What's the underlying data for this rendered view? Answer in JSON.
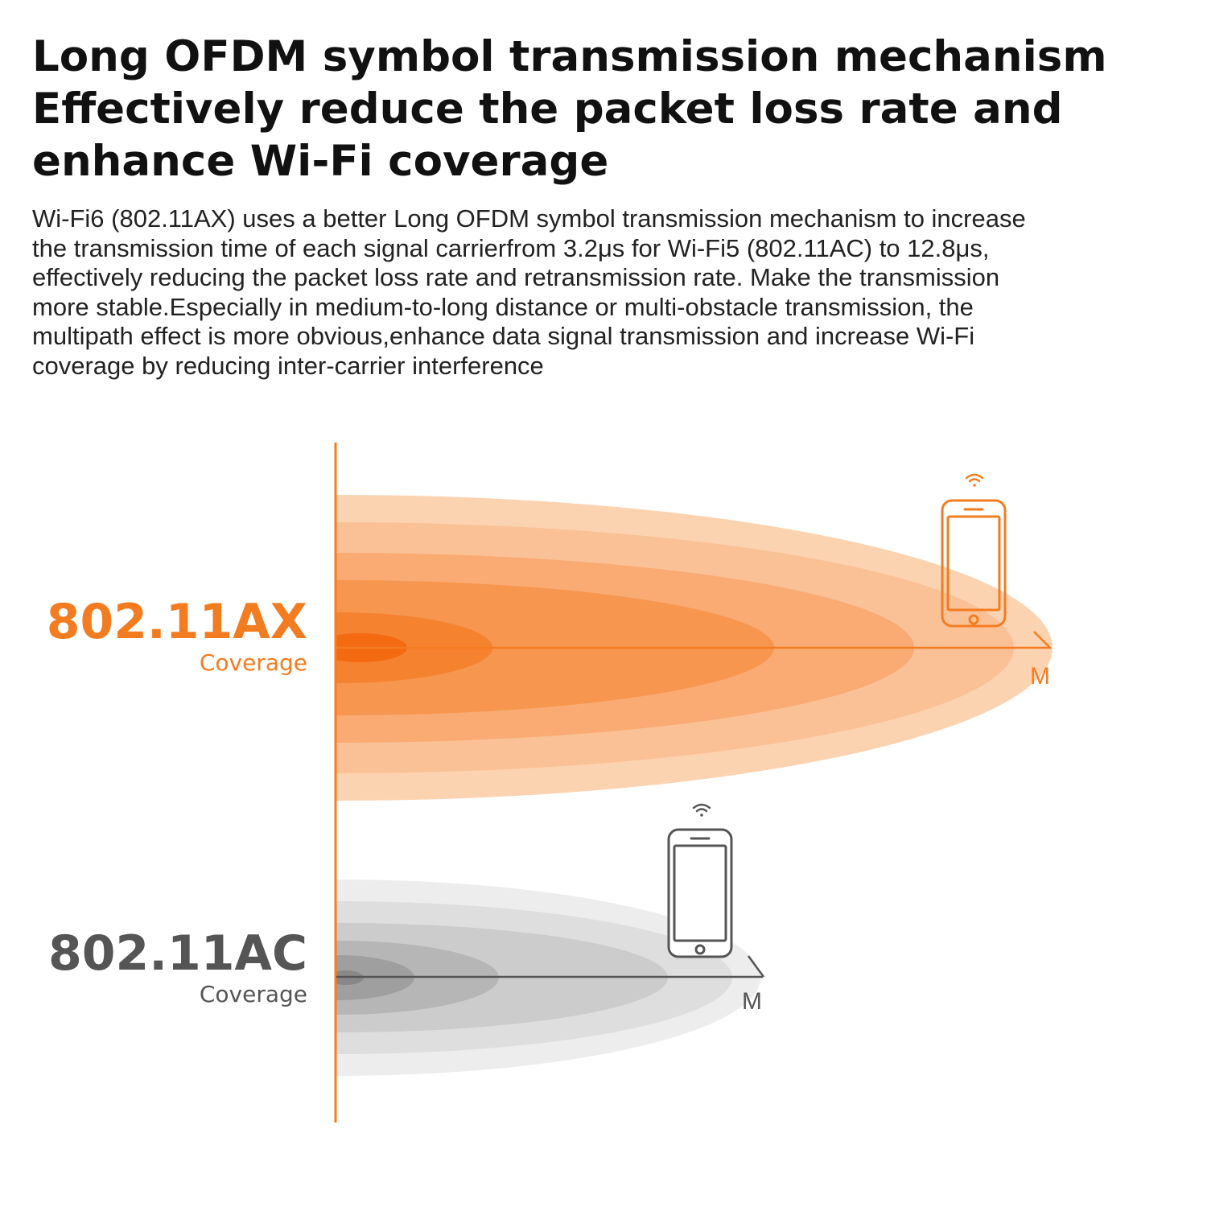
{
  "headline": {
    "lines": [
      "Long OFDM symbol transmission mechanism",
      "Effectively reduce the packet loss rate and",
      "enhance Wi-Fi coverage"
    ]
  },
  "body": {
    "lines": [
      "Wi-Fi6 (802.11AX) uses a better Long OFDM symbol transmission mechanism to increase",
      "the transmission time of each signal carrierfrom 3.2μs for Wi-Fi5 (802.11AC) to 12.8μs,",
      "effectively reducing the packet loss rate and retransmission rate. Make the transmission",
      "more stable.Especially in medium-to-long distance or multi-obstacle transmission, the",
      "multipath effect is more obvious,enhance data signal transmission and increase Wi-Fi",
      "coverage by reducing inter-carrier interference"
    ]
  },
  "diagram": {
    "ax": {
      "name": "802.11AX",
      "sub": "Coverage",
      "unit": "M"
    },
    "ac": {
      "name": "802.11AC",
      "sub": "Coverage",
      "unit": "M"
    },
    "colors": {
      "accent": "#f47c20",
      "ax_rings": [
        "#fcd3b1",
        "#fbc196",
        "#f9ab73",
        "#f7964f",
        "#f5822f",
        "#f36a10"
      ],
      "ac_rings": [
        "#ededed",
        "#dedede",
        "#cccccc",
        "#b6b6b6",
        "#9f9f9f",
        "#888888"
      ],
      "gray_text": "#555555"
    },
    "icons": [
      "smartphone-icon",
      "wifi-icon"
    ]
  }
}
